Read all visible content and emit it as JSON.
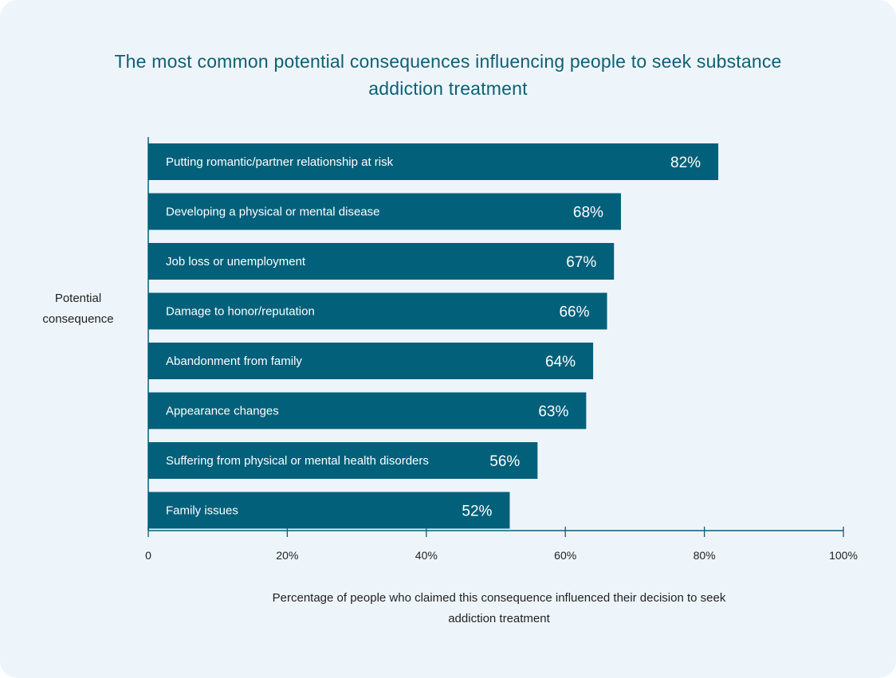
{
  "chart_data": {
    "type": "bar",
    "orientation": "horizontal",
    "title": "The most common potential consequences influencing people to seek substance addiction treatment",
    "ylabel": "Potential consequence",
    "xlabel": "Percentage of people who claimed this consequence influenced their decision to seek addiction treatment",
    "categories": [
      "Putting romantic/partner relationship at risk",
      "Developing a physical or mental disease",
      "Job loss or unemployment",
      "Damage to honor/reputation",
      "Abandonment from family",
      "Appearance changes",
      "Suffering from physical or mental health disorders",
      "Family issues"
    ],
    "values": [
      82,
      68,
      67,
      66,
      64,
      63,
      56,
      52
    ],
    "value_labels": [
      "82%",
      "68%",
      "67%",
      "66%",
      "64%",
      "63%",
      "56%",
      "52%"
    ],
    "xlim": [
      0,
      100
    ],
    "x_ticks": [
      0,
      20,
      40,
      60,
      80,
      100
    ],
    "x_tick_labels": [
      "0",
      "20%",
      "40%",
      "60%",
      "80%",
      "100%"
    ],
    "grid": false,
    "colors": {
      "bar": "#02607a",
      "title": "#0d6075",
      "axis": "#02607a",
      "background": "#eef5fa"
    }
  }
}
